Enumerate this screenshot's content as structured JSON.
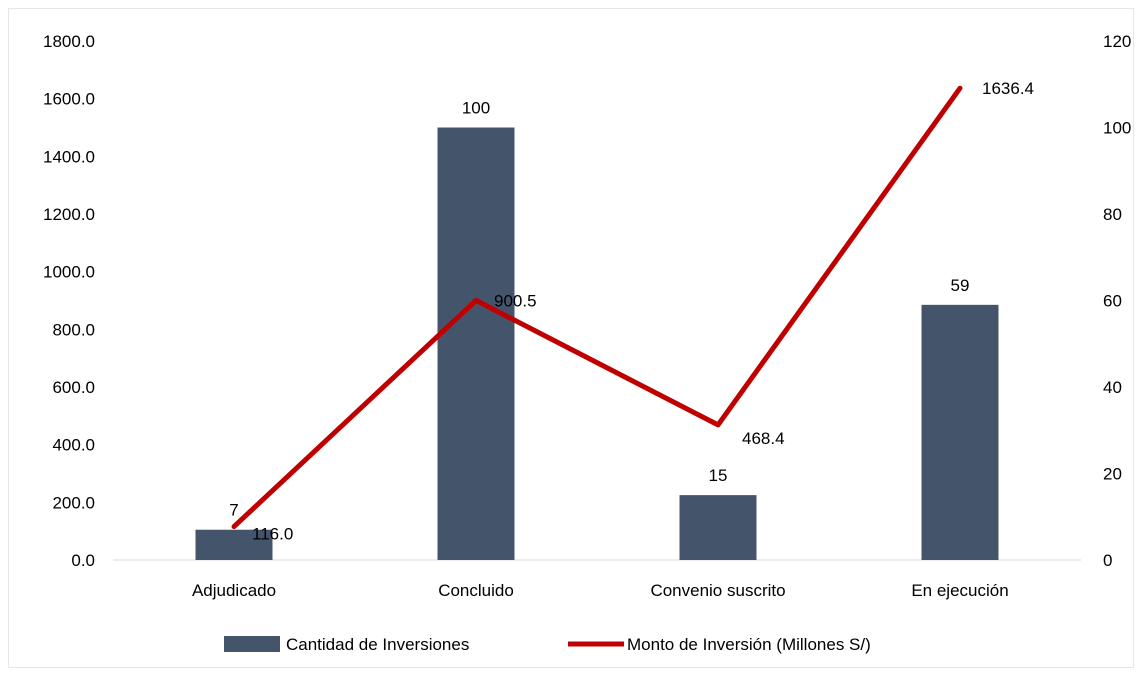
{
  "chart_data": {
    "type": "bar+line",
    "categories": [
      "Adjudicado",
      "Concluido",
      "Convenio suscrito",
      "En ejecución"
    ],
    "series": [
      {
        "name": "Cantidad de Inversiones",
        "type": "bar",
        "axis": "right",
        "values": [
          7,
          100,
          15,
          59
        ],
        "labels": [
          "7",
          "100",
          "15",
          "59"
        ],
        "color": "#44546a"
      },
      {
        "name": "Monto de Inversión (Millones S/)",
        "type": "line",
        "axis": "left",
        "values": [
          116.0,
          900.5,
          468.4,
          1636.4
        ],
        "labels": [
          "116.0",
          "900.5",
          "468.4",
          "1636.4"
        ],
        "color": "#c00000"
      }
    ],
    "y_left": {
      "ylim": [
        0,
        1800
      ],
      "ticks": [
        "0.0",
        "200.0",
        "400.0",
        "600.0",
        "800.0",
        "1000.0",
        "1200.0",
        "1400.0",
        "1600.0",
        "1800.0"
      ]
    },
    "y_right": {
      "ylim": [
        0,
        120
      ],
      "ticks": [
        "0",
        "20",
        "40",
        "60",
        "80",
        "100",
        "120"
      ]
    },
    "grid": false,
    "legend": "bottom"
  }
}
